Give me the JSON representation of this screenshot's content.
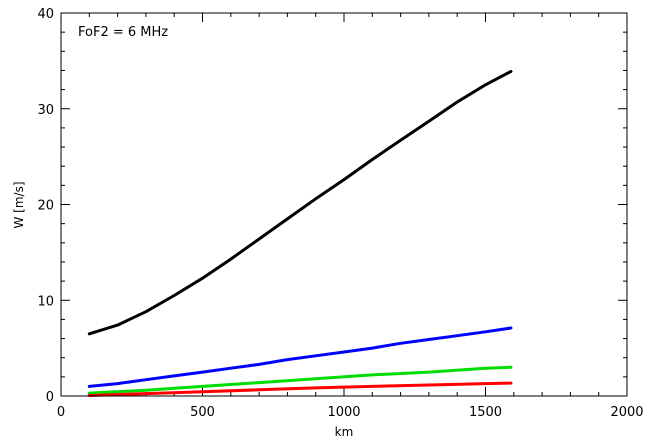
{
  "chart_data": {
    "type": "line",
    "annotation": "FoF2 = 6 MHz",
    "xlabel": "km",
    "ylabel": "W [m/s]",
    "xlim": [
      0,
      2000
    ],
    "ylim": [
      0,
      40
    ],
    "grid": false,
    "x_ticks": [
      0,
      500,
      1000,
      1500,
      2000
    ],
    "y_ticks": [
      0,
      10,
      20,
      30,
      40
    ],
    "x_tick_labels": [
      "0",
      "500",
      "1000",
      "1500",
      "2000"
    ],
    "y_tick_labels": [
      "0",
      "10",
      "20",
      "30",
      "40"
    ],
    "series": [
      {
        "color": "#000000",
        "x": [
          100,
          200,
          300,
          400,
          500,
          600,
          700,
          800,
          900,
          1000,
          1100,
          1200,
          1300,
          1400,
          1500,
          1590
        ],
        "y": [
          6.5,
          7.4,
          8.8,
          10.5,
          12.3,
          14.3,
          16.4,
          18.5,
          20.6,
          22.6,
          24.7,
          26.7,
          28.7,
          30.7,
          32.5,
          33.9
        ]
      },
      {
        "color": "#0000ff",
        "x": [
          100,
          200,
          300,
          400,
          500,
          600,
          700,
          800,
          900,
          1000,
          1100,
          1200,
          1300,
          1400,
          1500,
          1590
        ],
        "y": [
          1.0,
          1.3,
          1.7,
          2.1,
          2.5,
          2.9,
          3.3,
          3.8,
          4.2,
          4.6,
          5.0,
          5.5,
          5.9,
          6.3,
          6.7,
          7.1
        ]
      },
      {
        "color": "#00dd00",
        "x": [
          100,
          300,
          500,
          700,
          900,
          1100,
          1300,
          1500,
          1590
        ],
        "y": [
          0.3,
          0.6,
          1.0,
          1.4,
          1.8,
          2.2,
          2.5,
          2.9,
          3.0
        ]
      },
      {
        "color": "#ff0000",
        "x": [
          100,
          300,
          500,
          700,
          900,
          1100,
          1300,
          1500,
          1590
        ],
        "y": [
          0.05,
          0.25,
          0.45,
          0.65,
          0.85,
          1.0,
          1.15,
          1.3,
          1.35
        ]
      }
    ]
  }
}
